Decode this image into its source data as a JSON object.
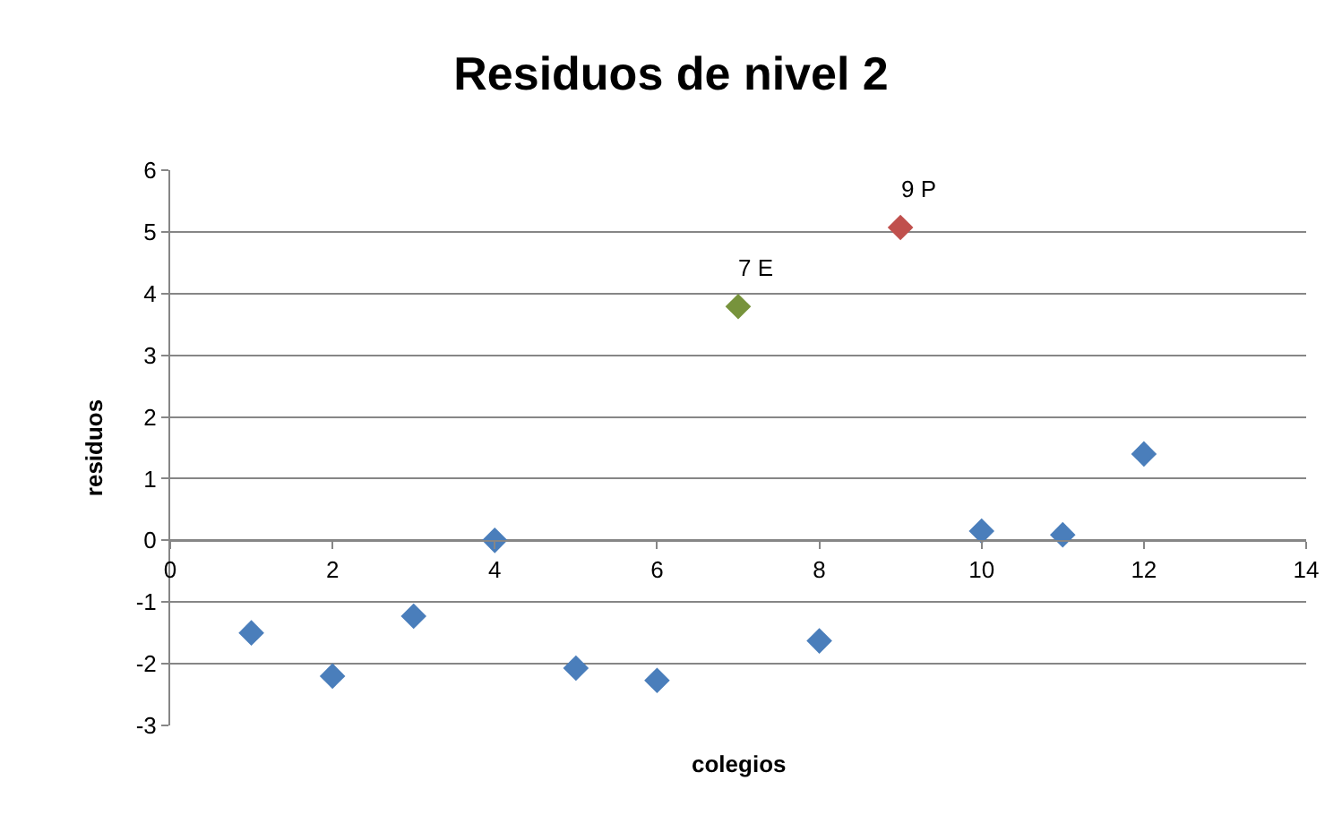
{
  "chart_data": {
    "type": "scatter",
    "title": "Residuos de nivel 2",
    "xlabel": "colegios",
    "ylabel": "residuos",
    "x": [
      1,
      2,
      3,
      4,
      5,
      6,
      7,
      8,
      9,
      10,
      11,
      12
    ],
    "values": [
      -1.5,
      -2.2,
      -1.23,
      0,
      -2.07,
      -2.27,
      3.79,
      -1.63,
      5.07,
      0.15,
      0.09,
      1.4
    ],
    "colors": [
      "#4a7ebb",
      "#4a7ebb",
      "#4a7ebb",
      "#4a7ebb",
      "#4a7ebb",
      "#4a7ebb",
      "#77933c",
      "#4a7ebb",
      "#c0504d",
      "#4a7ebb",
      "#4a7ebb",
      "#4a7ebb"
    ],
    "annotations": [
      {
        "text": "7 E",
        "x": 7,
        "y": 3.79
      },
      {
        "text": "9 P",
        "x": 9,
        "y": 5.07
      }
    ],
    "xlim": [
      0,
      14
    ],
    "xticks": [
      0,
      2,
      4,
      6,
      8,
      10,
      12,
      14
    ],
    "ylim": [
      -3,
      6
    ],
    "yticks": [
      -3,
      -2,
      -1,
      0,
      1,
      2,
      3,
      4,
      5,
      6
    ],
    "grid": "y",
    "marker": "diamond"
  }
}
